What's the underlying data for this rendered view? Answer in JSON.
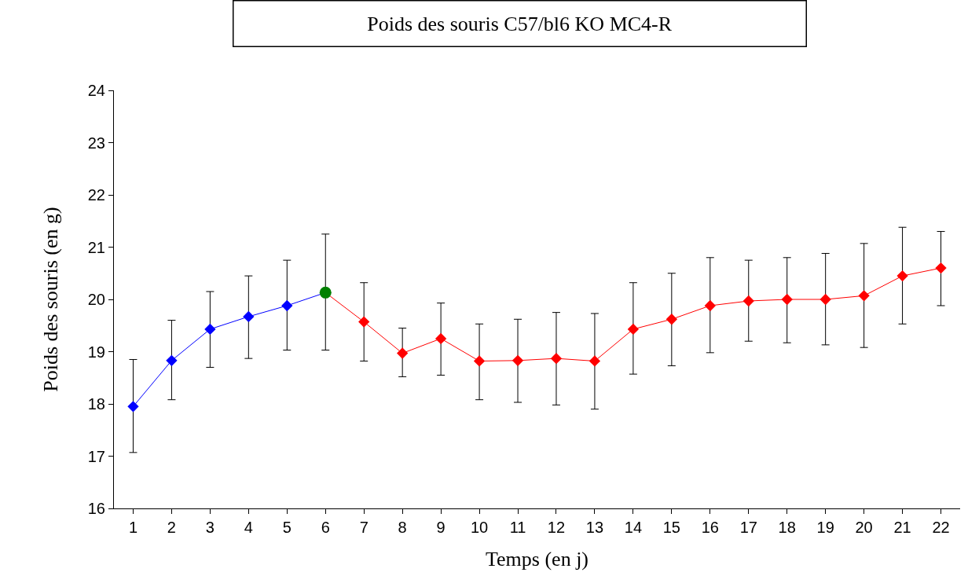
{
  "chart_data": {
    "type": "line",
    "title": "Poids des souris C57/bl6 KO MC4-R",
    "xlabel": "Temps (en j)",
    "ylabel": "Poids des souris (en g)",
    "xlim": [
      0.5,
      22.5
    ],
    "xticks": [
      1,
      2,
      3,
      4,
      5,
      6,
      7,
      8,
      9,
      10,
      11,
      12,
      13,
      14,
      15,
      16,
      17,
      18,
      19,
      20,
      21,
      22
    ],
    "ylim": [
      16,
      24
    ],
    "yticks": [
      16,
      17,
      18,
      19,
      20,
      21,
      22,
      23,
      24
    ],
    "grid": false,
    "legend": false,
    "marker": "diamond",
    "line_style": "solid",
    "series": [
      {
        "color": "#0000ff",
        "x": [
          1,
          2,
          3,
          4,
          5,
          6
        ],
        "values": [
          17.95,
          18.83,
          19.43,
          19.67,
          19.88,
          20.13
        ],
        "errors": [
          [
            17.07,
            18.85
          ],
          [
            18.08,
            19.6
          ],
          [
            18.7,
            20.15
          ],
          [
            18.87,
            20.45
          ],
          [
            19.03,
            20.75
          ],
          null
        ]
      },
      {
        "color": "#ff0000",
        "x": [
          6,
          7,
          8,
          9,
          10,
          11,
          12,
          13,
          14,
          15,
          16,
          17,
          18,
          19,
          20,
          21,
          22
        ],
        "values": [
          20.13,
          19.57,
          18.97,
          19.25,
          18.82,
          18.83,
          18.87,
          18.82,
          19.43,
          19.62,
          19.88,
          19.97,
          20.0,
          20.0,
          20.07,
          20.45,
          20.6
        ],
        "errors": [
          null,
          [
            18.82,
            20.32
          ],
          [
            18.52,
            19.45
          ],
          [
            18.55,
            19.93
          ],
          [
            18.08,
            19.53
          ],
          [
            18.03,
            19.62
          ],
          [
            17.98,
            19.75
          ],
          [
            17.9,
            19.73
          ],
          [
            18.57,
            20.32
          ],
          [
            18.73,
            20.5
          ],
          [
            18.98,
            20.8
          ],
          [
            19.2,
            20.75
          ],
          [
            19.17,
            20.8
          ],
          [
            19.13,
            20.88
          ],
          [
            19.08,
            21.07
          ],
          [
            19.53,
            21.38
          ],
          [
            19.88,
            21.3
          ]
        ]
      },
      {
        "type": "scatter",
        "marker": "circle",
        "color": "#008000",
        "x": [
          6
        ],
        "values": [
          20.13
        ],
        "errors": [
          [
            19.03,
            21.25
          ]
        ]
      }
    ]
  }
}
